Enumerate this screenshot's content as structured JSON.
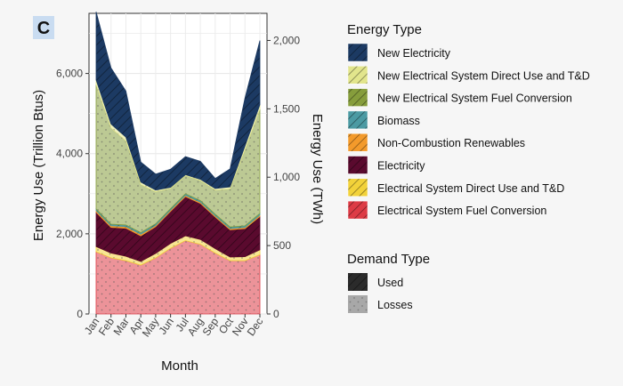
{
  "panel_label": "C",
  "chart_data": {
    "type": "area",
    "stacked": true,
    "title": "",
    "x": [
      "Jan",
      "Feb",
      "Mar",
      "Apr",
      "May",
      "Jun",
      "Jul",
      "Aug",
      "Sep",
      "Oct",
      "Nov",
      "Dec"
    ],
    "xlabel": "Month",
    "ylabel": "Energy Use (Trillion Btus)",
    "ylabel_right": "Energy Use (TWh)",
    "ylim": [
      0,
      7500
    ],
    "yticks": [
      0,
      2000,
      4000,
      6000
    ],
    "ytick_labels": [
      "0",
      "2,000",
      "4,000",
      "6,000"
    ],
    "yticks_right": [
      0,
      500,
      1000,
      1500,
      2000
    ],
    "ytick_labels_right": [
      "0",
      "500",
      "1,000",
      "1,500",
      "2,000"
    ],
    "twh_to_tbtu": 3.412,
    "grid": true,
    "legend_position": "right",
    "series": [
      {
        "name": "Electrical System Fuel Conversion",
        "demand": "Losses",
        "color": "#dd3b45",
        "values": [
          1550,
          1400,
          1330,
          1220,
          1400,
          1640,
          1830,
          1740,
          1520,
          1330,
          1330,
          1480
        ]
      },
      {
        "name": "Electrical System Direct Use and T&D",
        "demand": "Losses",
        "color": "#f2d23a",
        "values": [
          130,
          120,
          110,
          90,
          110,
          120,
          120,
          120,
          110,
          90,
          100,
          120
        ]
      },
      {
        "name": "Electricity",
        "demand": "Used",
        "color": "#5a0a2e",
        "values": [
          860,
          640,
          700,
          640,
          670,
          800,
          980,
          900,
          790,
          680,
          700,
          830
        ]
      },
      {
        "name": "Non-Combustion Renewables",
        "demand": "Used",
        "color": "#f39a2b",
        "values": [
          40,
          40,
          40,
          40,
          30,
          30,
          30,
          30,
          30,
          30,
          30,
          40
        ]
      },
      {
        "name": "Biomass",
        "demand": "Used",
        "color": "#4b9aa3",
        "values": [
          40,
          40,
          40,
          40,
          40,
          40,
          40,
          40,
          40,
          40,
          40,
          40
        ]
      },
      {
        "name": "New Electrical System Fuel Conversion",
        "demand": "Losses",
        "color": "#869d3c",
        "values": [
          3100,
          2400,
          2100,
          1200,
          800,
          500,
          450,
          500,
          600,
          950,
          1900,
          2600
        ]
      },
      {
        "name": "New Electrical System Direct Use and T&D",
        "demand": "Losses",
        "color": "#e2e58c",
        "values": [
          120,
          100,
          90,
          60,
          40,
          30,
          25,
          30,
          40,
          50,
          90,
          110
        ]
      },
      {
        "name": "New Electricity",
        "demand": "Used",
        "color": "#1c3a63",
        "values": [
          1700,
          1400,
          1150,
          500,
          400,
          450,
          450,
          450,
          250,
          450,
          1200,
          1600
        ]
      }
    ]
  },
  "legend": {
    "energy_title": "Energy Type",
    "energy_items": [
      {
        "label": "New Electricity",
        "color": "#1c3a63",
        "pattern": "hatch"
      },
      {
        "label": "New Electrical System Direct Use and T&D",
        "color": "#e2e58c",
        "pattern": "hatch"
      },
      {
        "label": "New Electrical System Fuel Conversion",
        "color": "#869d3c",
        "pattern": "hatch"
      },
      {
        "label": "Biomass",
        "color": "#4b9aa3",
        "pattern": "hatch"
      },
      {
        "label": "Non-Combustion Renewables",
        "color": "#f39a2b",
        "pattern": "hatch"
      },
      {
        "label": "Electricity",
        "color": "#5a0a2e",
        "pattern": "hatch"
      },
      {
        "label": "Electrical System Direct Use and T&D",
        "color": "#f2d23a",
        "pattern": "hatch"
      },
      {
        "label": "Electrical System Fuel Conversion",
        "color": "#dd3b45",
        "pattern": "hatch"
      }
    ],
    "demand_title": "Demand Type",
    "demand_items": [
      {
        "label": "Used",
        "color": "#2b2b2b",
        "pattern": "hatch"
      },
      {
        "label": "Losses",
        "color": "#9a9a9a",
        "pattern": "dots"
      }
    ]
  }
}
